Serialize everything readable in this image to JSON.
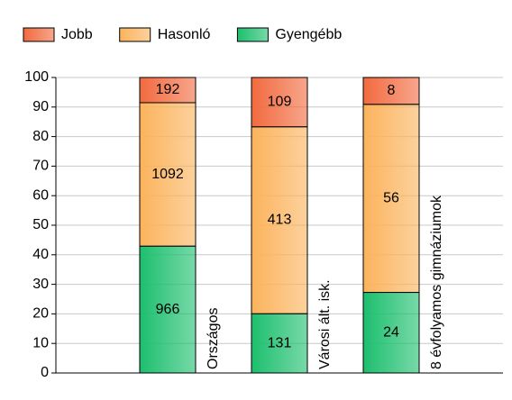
{
  "chart_data": {
    "type": "stacked_percent_bar",
    "categories": [
      "Országos",
      "Városi ált. isk.",
      "8 évfolyamos gimnáziumok"
    ],
    "series": [
      {
        "name": "Jobb",
        "color": "#f26a3f",
        "values": [
          192,
          109,
          8
        ]
      },
      {
        "name": "Hasonló",
        "color": "#fbb35c",
        "values": [
          1092,
          413,
          56
        ]
      },
      {
        "name": "Gyengébb",
        "color": "#1dbf6e",
        "values": [
          966,
          131,
          24
        ]
      }
    ],
    "ylim": [
      0,
      100
    ],
    "yticks": [
      0,
      10,
      20,
      30,
      40,
      50,
      60,
      70,
      80,
      90,
      100
    ],
    "grid": true
  }
}
